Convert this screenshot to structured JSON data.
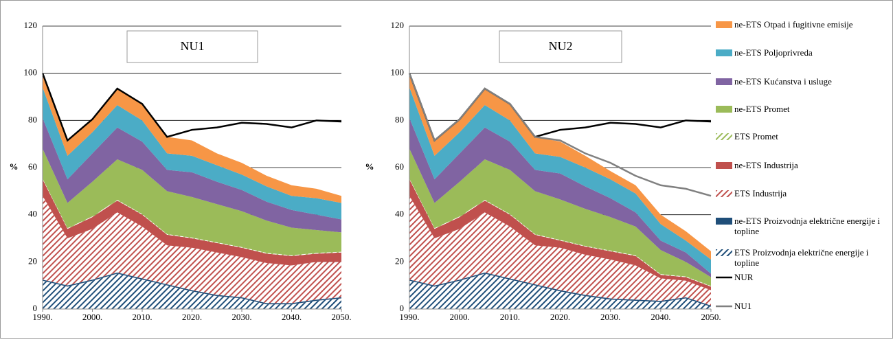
{
  "chart_data": [
    {
      "type": "area",
      "title": "NU1",
      "ylabel": "%",
      "x": [
        1990,
        1995,
        2000,
        2005,
        2010,
        2015,
        2020,
        2025,
        2030,
        2035,
        2040,
        2045,
        2050
      ],
      "xlim": [
        1990,
        2050
      ],
      "xticks": [
        {
          "value": 1990,
          "label": "1990."
        },
        {
          "value": 2000,
          "label": "2000."
        },
        {
          "value": 2010,
          "label": "2010."
        },
        {
          "value": 2020,
          "label": "2020."
        },
        {
          "value": 2030,
          "label": "2030."
        },
        {
          "value": 2040,
          "label": "2040."
        },
        {
          "value": 2050,
          "label": "2050."
        }
      ],
      "ylim": [
        0,
        120
      ],
      "yticks": [
        0,
        20,
        40,
        60,
        80,
        100,
        120
      ],
      "grid": true,
      "series": [
        {
          "name": "ETS Proizvodnja električne energije i topline",
          "color": "#1f4e79",
          "hatch": true,
          "values": [
            12,
            9.5,
            12,
            15,
            12.5,
            10,
            7.5,
            5.5,
            4.5,
            2,
            2,
            3.5,
            4.5
          ]
        },
        {
          "name": "ne-ETS Proizvodnja električne energije i topline",
          "color": "#1f4e79",
          "values": [
            0.5,
            0.5,
            0.5,
            0.5,
            0.5,
            0.5,
            0.5,
            0.5,
            0.5,
            0.5,
            0.5,
            0.5,
            0.5
          ]
        },
        {
          "name": "ETS Industrija",
          "color": "#c0504d",
          "hatch": true,
          "values": [
            35.5,
            20,
            21.5,
            25.5,
            22,
            16.5,
            18,
            18,
            17,
            17,
            16,
            16,
            15
          ]
        },
        {
          "name": "ne-ETS Industrija",
          "color": "#c0504d",
          "values": [
            7,
            4,
            5,
            5,
            5,
            4.5,
            4,
            4,
            4,
            4,
            4,
            3.5,
            4
          ]
        },
        {
          "name": "ETS Promet",
          "color": "#9bbb59",
          "hatch": true,
          "values": [
            0.3,
            0.3,
            0.3,
            0.3,
            0.3,
            0.3,
            0.3,
            0.3,
            0.3,
            0.3,
            0.3,
            0.3,
            0.3
          ]
        },
        {
          "name": "ne-ETS Promet",
          "color": "#9bbb59",
          "values": [
            12.7,
            10.7,
            14.7,
            17.2,
            18.7,
            18.2,
            17.2,
            16.2,
            15.2,
            13.7,
            11.7,
            9.7,
            8.2
          ]
        },
        {
          "name": "ne-ETS Kućanstva i usluge",
          "color": "#8064a2",
          "values": [
            13,
            10,
            12,
            13.5,
            12,
            9,
            10.5,
            9.5,
            9,
            8,
            7.5,
            6.5,
            5.5
          ]
        },
        {
          "name": "ne-ETS Poljoprivreda",
          "color": "#4bacc6",
          "values": [
            13,
            10,
            9,
            9.5,
            9,
            7,
            7,
            7,
            6.5,
            6.5,
            6,
            7,
            7
          ]
        },
        {
          "name": "ne-ETS Otpad i fugitivne emisije",
          "color": "#f79646",
          "values": [
            6,
            6,
            5.5,
            7,
            7,
            7,
            6.5,
            5,
            5,
            4.5,
            4.5,
            4,
            3
          ]
        },
        {
          "name": "NUR",
          "color": "#000000",
          "type": "line",
          "values": [
            100,
            71.5,
            80.5,
            93.5,
            87,
            73,
            76,
            77,
            79,
            78.5,
            77,
            80,
            79.5
          ]
        }
      ]
    },
    {
      "type": "area",
      "title": "NU2",
      "ylabel": "%",
      "x": [
        1990,
        1995,
        2000,
        2005,
        2010,
        2015,
        2020,
        2025,
        2030,
        2035,
        2040,
        2045,
        2050
      ],
      "xlim": [
        1990,
        2050
      ],
      "xticks": [
        {
          "value": 1990,
          "label": "1990."
        },
        {
          "value": 2000,
          "label": "2000."
        },
        {
          "value": 2010,
          "label": "2010."
        },
        {
          "value": 2020,
          "label": "2020."
        },
        {
          "value": 2030,
          "label": "2030."
        },
        {
          "value": 2040,
          "label": "2040."
        },
        {
          "value": 2050,
          "label": "2050."
        }
      ],
      "ylim": [
        0,
        120
      ],
      "yticks": [
        0,
        20,
        40,
        60,
        80,
        100,
        120
      ],
      "grid": true,
      "series": [
        {
          "name": "ETS Proizvodnja električne energije i topline",
          "color": "#1f4e79",
          "hatch": true,
          "values": [
            12,
            9.5,
            12,
            15,
            12.5,
            10,
            7.5,
            5.5,
            4,
            3.5,
            3,
            4.5,
            1
          ]
        },
        {
          "name": "ne-ETS Proizvodnja električne energije i topline",
          "color": "#1f4e79",
          "values": [
            0.5,
            0.5,
            0.5,
            0.5,
            0.5,
            0.5,
            0.5,
            0.5,
            0.5,
            0.5,
            0.5,
            0.5,
            0.5
          ]
        },
        {
          "name": "ETS Industrija",
          "color": "#c0504d",
          "hatch": true,
          "values": [
            35.5,
            20,
            21.5,
            25.5,
            22,
            16.5,
            18,
            17,
            16.5,
            14.5,
            9.5,
            7,
            6.5
          ]
        },
        {
          "name": "ne-ETS Industrija",
          "color": "#c0504d",
          "values": [
            7,
            4,
            5,
            5,
            5,
            4.5,
            3,
            3.5,
            3.5,
            4,
            1.5,
            1.5,
            1.5
          ]
        },
        {
          "name": "ETS Promet",
          "color": "#9bbb59",
          "hatch": true,
          "values": [
            0.3,
            0.3,
            0.3,
            0.3,
            0.3,
            0.3,
            0.3,
            0.3,
            0.3,
            0.3,
            0.3,
            0.3,
            0.3
          ]
        },
        {
          "name": "ne-ETS Promet",
          "color": "#9bbb59",
          "values": [
            12.7,
            10.7,
            14.7,
            17.2,
            18.7,
            18.2,
            17.2,
            15.7,
            14.2,
            12.2,
            10.2,
            6.2,
            3.7
          ]
        },
        {
          "name": "ne-ETS Kućanstva i usluge",
          "color": "#8064a2",
          "values": [
            13,
            10,
            12,
            13.5,
            12,
            9,
            11,
            9.5,
            8,
            6,
            4,
            4,
            1.5
          ]
        },
        {
          "name": "ne-ETS Poljoprivreda",
          "color": "#4bacc6",
          "values": [
            13,
            10,
            9,
            9.5,
            9,
            7,
            7,
            8,
            8,
            8,
            7,
            5,
            6
          ]
        },
        {
          "name": "ne-ETS Otpad i fugitivne emisije",
          "color": "#f79646",
          "values": [
            6,
            6,
            5.5,
            7,
            7,
            7,
            6.5,
            5,
            3.5,
            3.5,
            4,
            4,
            3.5
          ]
        },
        {
          "name": "NUR",
          "color": "#000000",
          "type": "line",
          "values": [
            100,
            71.5,
            80.5,
            93.5,
            87,
            73,
            76,
            77,
            79,
            78.5,
            77,
            80,
            79.5
          ]
        },
        {
          "name": "NU1",
          "color": "#808080",
          "type": "line",
          "values": [
            100,
            71.5,
            80.5,
            93.5,
            87,
            73,
            71.5,
            66,
            62,
            56.5,
            52.5,
            51,
            48
          ]
        }
      ]
    }
  ]
}
